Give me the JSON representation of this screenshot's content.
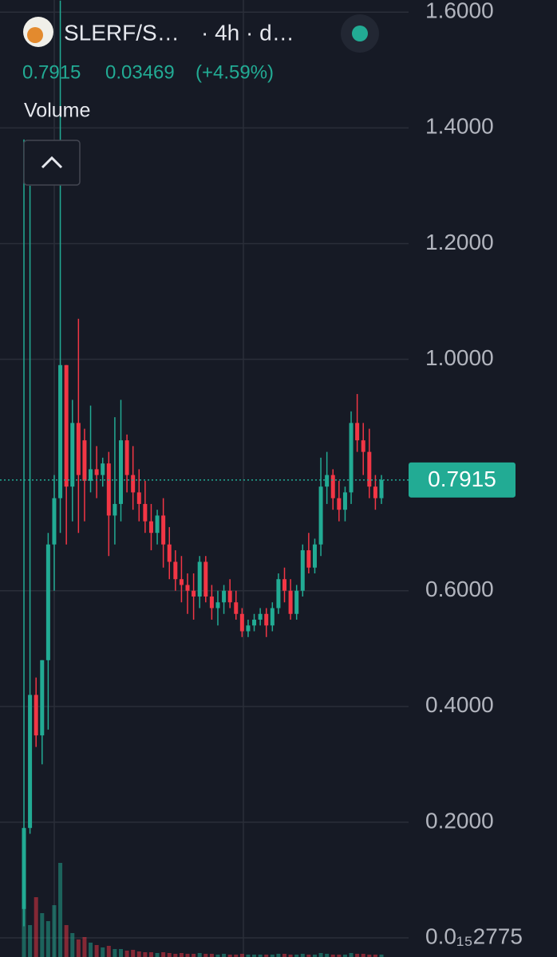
{
  "chart_data": {
    "type": "candlestick",
    "symbol": "SLERF/S…",
    "interval": "· 4h · d…",
    "last": "0.7915",
    "change": "0.03469",
    "change_pct": "(+4.59%)",
    "volume_title": "Volume",
    "up_color": "#22ab94",
    "down_color": "#f23645",
    "ylim": [
      -0.033,
      1.621
    ],
    "yticks": [
      {
        "value": 1.6,
        "label": "1.6000"
      },
      {
        "value": 1.4,
        "label": "1.4000"
      },
      {
        "value": 1.2,
        "label": "1.2000"
      },
      {
        "value": 1.0,
        "label": "1.0000"
      },
      {
        "value": 0.6,
        "label": "0.6000"
      },
      {
        "value": 0.4,
        "label": "0.4000"
      },
      {
        "value": 0.2,
        "label": "0.2000"
      },
      {
        "value": 2.775e-16,
        "label": "0.0₁₅2775"
      }
    ],
    "grid": true,
    "last_price": 0.7915,
    "open": [
      0.05,
      0.19,
      0.42,
      0.35,
      0.48,
      0.68,
      0.76,
      0.99,
      0.78,
      0.89,
      0.86,
      0.79,
      0.81,
      0.8,
      0.82,
      0.73,
      0.75,
      0.86,
      0.8,
      0.77,
      0.75,
      0.72,
      0.7,
      0.73,
      0.68,
      0.65,
      0.62,
      0.61,
      0.6,
      0.59,
      0.65,
      0.59,
      0.57,
      0.58,
      0.6,
      0.58,
      0.56,
      0.53,
      0.54,
      0.55,
      0.56,
      0.54,
      0.57,
      0.62,
      0.6,
      0.56,
      0.6,
      0.67,
      0.64,
      0.68,
      0.78,
      0.8,
      0.76,
      0.74,
      0.77,
      0.89,
      0.86,
      0.84,
      0.78,
      0.76
    ],
    "high": [
      1.38,
      1.3,
      0.45,
      0.48,
      0.7,
      0.8,
      1.62,
      0.99,
      0.93,
      1.07,
      0.88,
      0.92,
      0.85,
      0.83,
      0.84,
      0.9,
      0.93,
      0.87,
      0.85,
      0.81,
      0.79,
      0.75,
      0.74,
      0.76,
      0.71,
      0.67,
      0.66,
      0.63,
      0.63,
      0.66,
      0.66,
      0.61,
      0.6,
      0.61,
      0.62,
      0.6,
      0.57,
      0.55,
      0.56,
      0.57,
      0.57,
      0.58,
      0.63,
      0.64,
      0.62,
      0.61,
      0.68,
      0.7,
      0.69,
      0.83,
      0.84,
      0.81,
      0.79,
      0.78,
      0.91,
      0.94,
      0.89,
      0.88,
      0.8,
      0.8
    ],
    "low": [
      0.02,
      0.18,
      0.33,
      0.3,
      0.36,
      0.6,
      0.7,
      0.68,
      0.72,
      0.7,
      0.72,
      0.77,
      0.76,
      0.78,
      0.66,
      0.68,
      0.72,
      0.77,
      0.74,
      0.72,
      0.7,
      0.67,
      0.68,
      0.64,
      0.62,
      0.6,
      0.58,
      0.56,
      0.55,
      0.57,
      0.58,
      0.55,
      0.54,
      0.56,
      0.57,
      0.55,
      0.52,
      0.52,
      0.53,
      0.54,
      0.52,
      0.53,
      0.56,
      0.58,
      0.55,
      0.55,
      0.59,
      0.63,
      0.63,
      0.66,
      0.75,
      0.74,
      0.72,
      0.72,
      0.75,
      0.84,
      0.8,
      0.76,
      0.74,
      0.75
    ],
    "close": [
      0.19,
      0.42,
      0.35,
      0.48,
      0.68,
      0.76,
      0.99,
      0.78,
      0.89,
      0.8,
      0.79,
      0.81,
      0.8,
      0.82,
      0.73,
      0.75,
      0.86,
      0.8,
      0.77,
      0.75,
      0.72,
      0.7,
      0.73,
      0.68,
      0.65,
      0.62,
      0.61,
      0.6,
      0.59,
      0.65,
      0.59,
      0.57,
      0.58,
      0.6,
      0.58,
      0.56,
      0.53,
      0.54,
      0.55,
      0.56,
      0.54,
      0.57,
      0.62,
      0.6,
      0.56,
      0.6,
      0.67,
      0.64,
      0.68,
      0.78,
      0.8,
      0.76,
      0.74,
      0.77,
      0.89,
      0.86,
      0.84,
      0.78,
      0.76,
      0.7915
    ],
    "volume": [
      160,
      40,
      75,
      55,
      45,
      65,
      118,
      40,
      30,
      22,
      25,
      18,
      15,
      12,
      14,
      10,
      10,
      8,
      9,
      7,
      6,
      6,
      5,
      6,
      5,
      4,
      5,
      4,
      4,
      5,
      4,
      4,
      3,
      4,
      3,
      3,
      4,
      3,
      3,
      3,
      3,
      3,
      4,
      4,
      3,
      3,
      4,
      3,
      3,
      5,
      4,
      3,
      3,
      3,
      5,
      4,
      4,
      3,
      3,
      3
    ],
    "volume_lim": [
      0,
      180
    ]
  }
}
